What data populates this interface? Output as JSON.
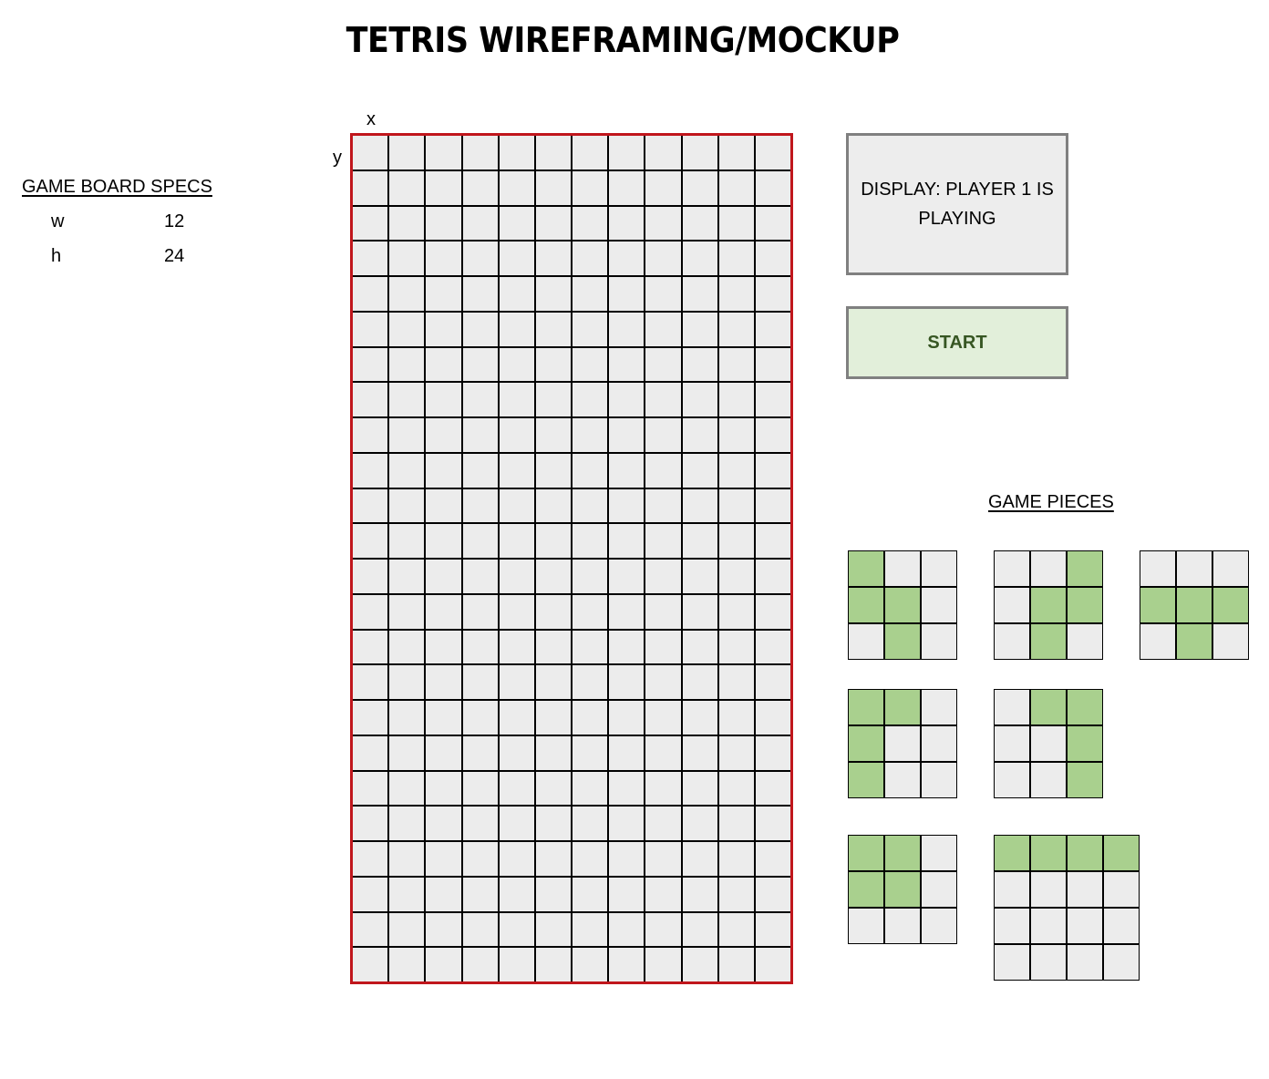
{
  "title": "TETRIS WIREFRAMING/MOCKUP",
  "specs": {
    "heading": "GAME BOARD SPECS",
    "rows": [
      {
        "key": "w",
        "value": "12"
      },
      {
        "key": "h",
        "value": "24"
      }
    ]
  },
  "board": {
    "x_label": "x",
    "y_label": "y",
    "columns": 12,
    "rows": 24,
    "border_color": "#c0161c",
    "cell_color": "#ececec"
  },
  "display": {
    "text": "DISPLAY: PLAYER 1 IS PLAYING"
  },
  "start_button": {
    "label": "START"
  },
  "pieces": {
    "heading": "GAME PIECES",
    "fill_color": "#a9d08e",
    "items": [
      {
        "name": "s-piece",
        "cols": 3,
        "rows": 3,
        "grid": [
          [
            1,
            0,
            0
          ],
          [
            1,
            1,
            0
          ],
          [
            0,
            1,
            0
          ]
        ]
      },
      {
        "name": "z-piece",
        "cols": 3,
        "rows": 3,
        "grid": [
          [
            0,
            0,
            1
          ],
          [
            0,
            1,
            1
          ],
          [
            0,
            1,
            0
          ]
        ]
      },
      {
        "name": "t-piece",
        "cols": 3,
        "rows": 3,
        "grid": [
          [
            0,
            0,
            0
          ],
          [
            1,
            1,
            1
          ],
          [
            0,
            1,
            0
          ]
        ]
      },
      {
        "name": "j-piece",
        "cols": 3,
        "rows": 3,
        "grid": [
          [
            1,
            1,
            0
          ],
          [
            1,
            0,
            0
          ],
          [
            1,
            0,
            0
          ]
        ]
      },
      {
        "name": "l-piece",
        "cols": 3,
        "rows": 3,
        "grid": [
          [
            0,
            1,
            1
          ],
          [
            0,
            0,
            1
          ],
          [
            0,
            0,
            1
          ]
        ]
      },
      {
        "name": "o-piece",
        "cols": 3,
        "rows": 3,
        "grid": [
          [
            1,
            1,
            0
          ],
          [
            1,
            1,
            0
          ],
          [
            0,
            0,
            0
          ]
        ]
      },
      {
        "name": "i-piece",
        "cols": 4,
        "rows": 4,
        "grid": [
          [
            1,
            1,
            1,
            1
          ],
          [
            0,
            0,
            0,
            0
          ],
          [
            0,
            0,
            0,
            0
          ],
          [
            0,
            0,
            0,
            0
          ]
        ]
      }
    ]
  }
}
